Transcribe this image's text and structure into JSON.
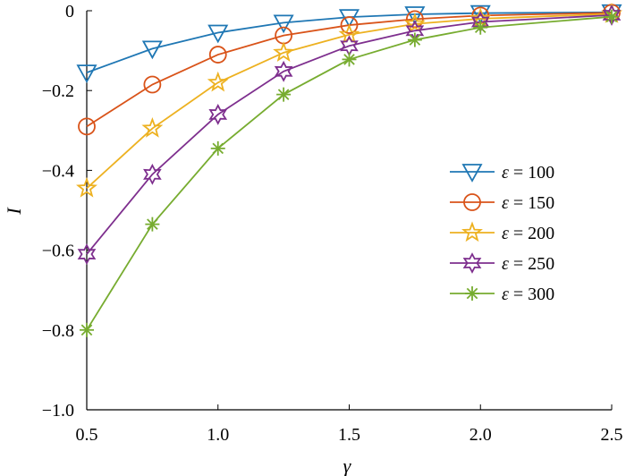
{
  "chart_data": {
    "type": "line",
    "title": "",
    "xlabel": "γ",
    "ylabel": "I",
    "xlim": [
      0.5,
      2.5
    ],
    "ylim": [
      -1.0,
      0.0
    ],
    "xticks": [
      0.5,
      1.0,
      1.5,
      2.0,
      2.5
    ],
    "xtick_labels": [
      "0.5",
      "1.0",
      "1.5",
      "2.0",
      "2.5"
    ],
    "yticks": [
      0,
      -0.2,
      -0.4,
      -0.6,
      -0.8,
      -1.0
    ],
    "ytick_labels": [
      "0",
      "−0.2",
      "−0.4",
      "−0.6",
      "−0.8",
      "−1.0"
    ],
    "grid": false,
    "legend_position": "right",
    "x": [
      0.5,
      0.75,
      1.0,
      1.25,
      1.5,
      1.75,
      2.0,
      2.5
    ],
    "series": [
      {
        "name": "ε = 100",
        "legend_symbol": "ε",
        "legend_value": "100",
        "color": "#1f77b4",
        "marker": "triangle-down",
        "values": [
          -0.155,
          -0.095,
          -0.055,
          -0.03,
          -0.016,
          -0.009,
          -0.006,
          -0.004
        ]
      },
      {
        "name": "ε = 150",
        "legend_symbol": "ε",
        "legend_value": "150",
        "color": "#d95319",
        "marker": "circle",
        "values": [
          -0.29,
          -0.185,
          -0.11,
          -0.062,
          -0.036,
          -0.021,
          -0.012,
          -0.005
        ]
      },
      {
        "name": "ε = 200",
        "legend_symbol": "ε",
        "legend_value": "200",
        "color": "#edb120",
        "marker": "star5",
        "values": [
          -0.445,
          -0.295,
          -0.18,
          -0.105,
          -0.06,
          -0.033,
          -0.02,
          -0.008
        ]
      },
      {
        "name": "ε = 250",
        "legend_symbol": "ε",
        "legend_value": "250",
        "color": "#7e2f8e",
        "marker": "star6",
        "values": [
          -0.61,
          -0.41,
          -0.26,
          -0.152,
          -0.088,
          -0.05,
          -0.028,
          -0.011
        ]
      },
      {
        "name": "ε = 300",
        "legend_symbol": "ε",
        "legend_value": "300",
        "color": "#77ac30",
        "marker": "asterisk",
        "values": [
          -0.8,
          -0.535,
          -0.345,
          -0.21,
          -0.122,
          -0.073,
          -0.042,
          -0.015
        ]
      }
    ]
  }
}
